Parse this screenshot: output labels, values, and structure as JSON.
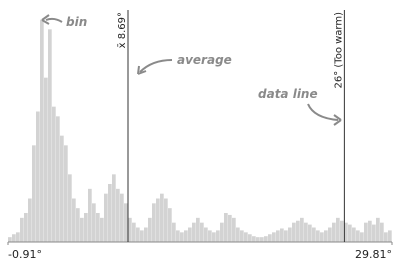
{
  "chart_data": {
    "type": "histogram",
    "bins": [
      -0.91,
      -0.59,
      -0.27,
      0.05,
      0.37,
      0.69,
      1.01,
      1.33,
      1.65,
      1.97,
      2.29,
      2.61,
      2.93,
      3.25,
      3.57,
      3.89,
      4.21,
      4.53,
      4.85,
      5.17,
      5.49,
      5.81,
      6.13,
      6.45,
      6.77,
      7.09,
      7.41,
      7.73,
      8.05,
      8.37,
      8.69,
      9.01,
      9.33,
      9.65,
      9.97,
      10.29,
      10.61,
      10.93,
      11.25,
      11.57,
      11.89,
      12.21,
      12.53,
      12.85,
      13.17,
      13.49,
      13.81,
      14.13,
      14.45,
      14.77,
      15.09,
      15.41,
      15.73,
      16.05,
      16.37,
      16.69,
      17.01,
      17.33,
      17.65,
      17.97,
      18.29,
      18.61,
      18.93,
      19.25,
      19.57,
      19.89,
      20.21,
      20.53,
      20.85,
      21.17,
      21.49,
      21.81,
      22.13,
      22.45,
      22.77,
      23.09,
      23.41,
      23.73,
      24.05,
      24.37,
      24.69,
      25.01,
      25.33,
      25.65,
      25.97,
      26.29,
      26.61,
      26.93,
      27.25,
      27.57,
      27.89,
      28.21,
      28.53,
      28.85,
      29.17,
      29.49,
      29.81
    ],
    "values": [
      5,
      8,
      10,
      25,
      30,
      45,
      100,
      135,
      230,
      170,
      220,
      140,
      130,
      110,
      100,
      70,
      45,
      35,
      25,
      30,
      55,
      40,
      30,
      25,
      50,
      60,
      70,
      55,
      50,
      40,
      25,
      20,
      15,
      12,
      15,
      25,
      40,
      45,
      50,
      45,
      35,
      20,
      12,
      10,
      12,
      15,
      20,
      25,
      20,
      15,
      12,
      10,
      12,
      20,
      30,
      28,
      25,
      15,
      12,
      10,
      8,
      6,
      5,
      5,
      6,
      8,
      10,
      12,
      14,
      12,
      15,
      20,
      22,
      25,
      20,
      18,
      15,
      12,
      10,
      12,
      15,
      20,
      25,
      22,
      20,
      18,
      15,
      12,
      10,
      20,
      22,
      18,
      25,
      20,
      10,
      12
    ],
    "color": "#d3d3d3",
    "xlim": [
      -0.91,
      29.81
    ],
    "ylim": [
      0,
      240
    ],
    "xticks": [
      {
        "value": -0.91,
        "label": "-0.91°"
      },
      {
        "value": 29.81,
        "label": "29.81°"
      }
    ],
    "reference_lines": [
      {
        "value": 8.69,
        "label": "x̄ 8.69°"
      },
      {
        "value": 26,
        "label": "26° (Too warm)"
      }
    ],
    "annotations": [
      "bin",
      "average",
      "data line"
    ]
  }
}
